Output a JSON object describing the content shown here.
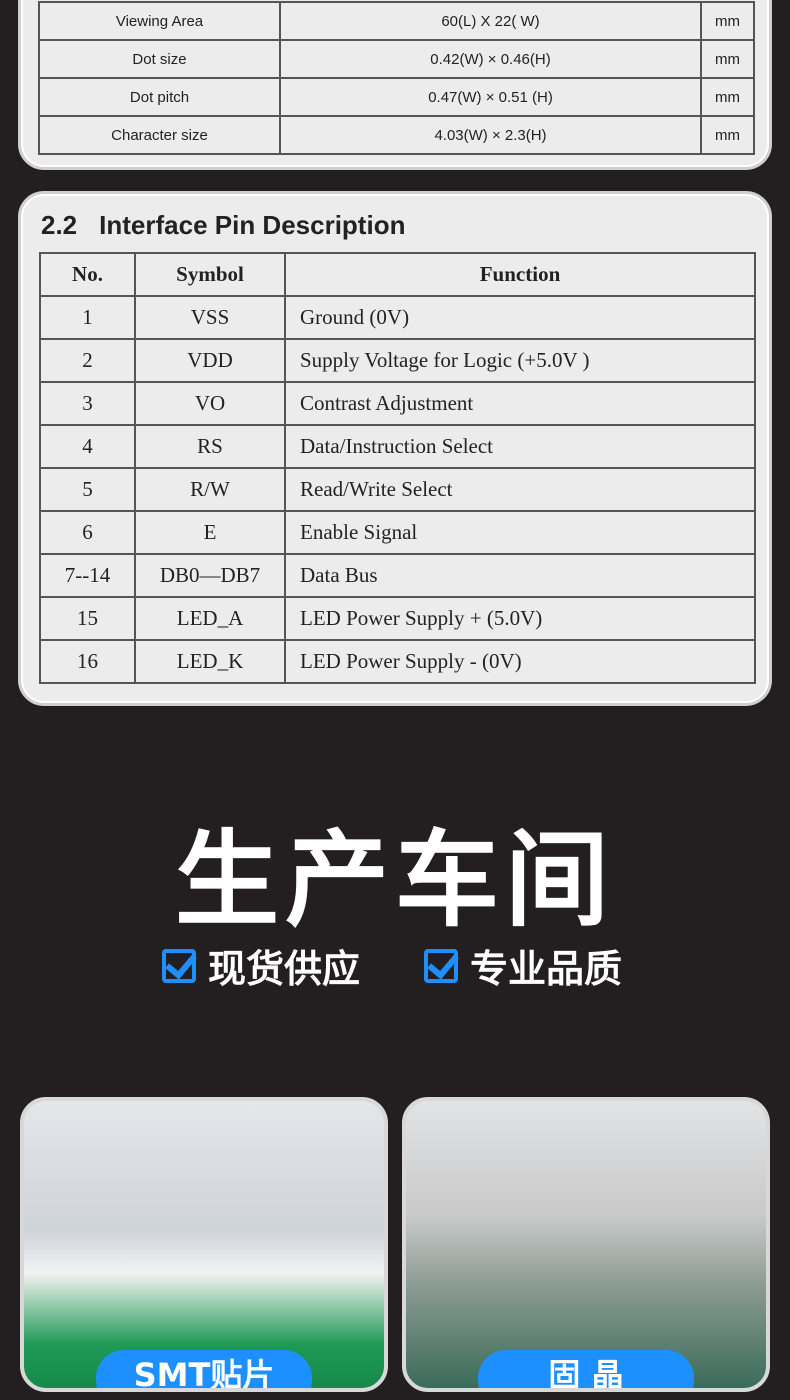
{
  "spec_rows": [
    {
      "item": "Viewing Area",
      "value": "60(L) X 22( W)",
      "unit": "mm"
    },
    {
      "item": "Dot size",
      "value": "0.42(W) × 0.46(H)",
      "unit": "mm"
    },
    {
      "item": "Dot pitch",
      "value": "0.47(W) × 0.51 (H)",
      "unit": "mm"
    },
    {
      "item": "Character size",
      "value": "4.03(W) × 2.3(H)",
      "unit": "mm"
    }
  ],
  "pin_section": {
    "number": "2.2",
    "title": "Interface Pin Description",
    "headers": [
      "No.",
      "Symbol",
      "Function"
    ],
    "rows": [
      [
        "1",
        "VSS",
        "Ground (0V)"
      ],
      [
        "2",
        "VDD",
        "Supply Voltage for Logic (+5.0V )"
      ],
      [
        "3",
        "VO",
        "Contrast Adjustment"
      ],
      [
        "4",
        "RS",
        "Data/Instruction Select"
      ],
      [
        "5",
        "R/W",
        "Read/Write Select"
      ],
      [
        "6",
        "E",
        "Enable Signal"
      ],
      [
        "7--14",
        "DB0—DB7",
        "Data Bus"
      ],
      [
        "15",
        "LED_A",
        "LED Power Supply + (5.0V)"
      ],
      [
        "16",
        "LED_K",
        "LED Power Supply - (0V)"
      ]
    ]
  },
  "workshop": {
    "title": "生产车间",
    "features": [
      "现货供应",
      "专业品质"
    ],
    "accent": "#1e8fff",
    "photos": [
      {
        "label": "SMT贴片"
      },
      {
        "label": "固 晶"
      }
    ]
  }
}
